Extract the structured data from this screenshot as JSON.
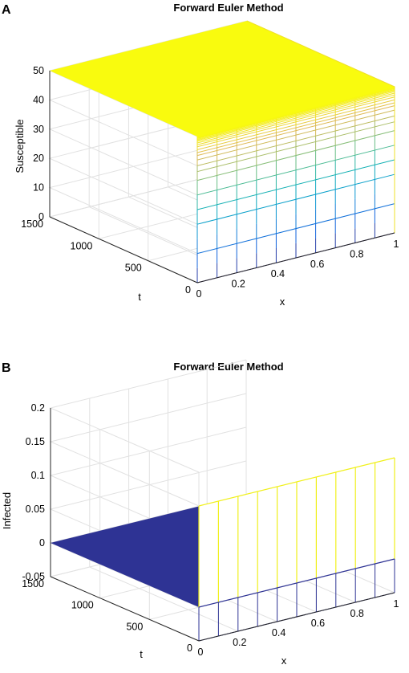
{
  "chart_data": [
    {
      "type": "surface",
      "panel_label": "A",
      "title": "Forward Euler Method",
      "xlabel": "x",
      "ylabel": "t",
      "zlabel": "Susceptible",
      "xlim": [
        0,
        1
      ],
      "ylim": [
        0,
        1500
      ],
      "zlim": [
        0,
        50
      ],
      "x_ticks": [
        0,
        0.2,
        0.4,
        0.6,
        0.8,
        1
      ],
      "y_ticks": [
        0,
        500,
        1000,
        1500
      ],
      "z_ticks": [
        0,
        10,
        20,
        30,
        40,
        50
      ],
      "x_tick_labels": [
        "0",
        "0.2",
        "0.4",
        "0.6",
        "0.8",
        "1"
      ],
      "y_tick_labels": [
        "0",
        "500",
        "1000",
        "1500"
      ],
      "z_tick_labels": [
        "0",
        "10",
        "20",
        "30",
        "40",
        "50"
      ],
      "x_front_lines": [
        0,
        0.1,
        0.2,
        0.3,
        0.4,
        0.5,
        0.6,
        0.7,
        0.8,
        0.9,
        1
      ],
      "front_edge_levels": [
        0,
        10,
        20,
        25,
        30,
        35,
        38,
        40,
        42,
        43.5,
        44.5,
        45.5,
        46.5,
        47.2,
        47.8,
        48.3,
        48.7,
        49,
        49.3,
        49.5,
        49.7,
        49.85,
        50
      ],
      "top_plateau": 50,
      "grid": true,
      "colormap": "parula"
    },
    {
      "type": "surface",
      "panel_label": "B",
      "title": "Forward Euler Method",
      "xlabel": "x",
      "ylabel": "t",
      "zlabel": "Infected",
      "xlim": [
        0,
        1
      ],
      "ylim": [
        0,
        1500
      ],
      "zlim": [
        -0.05,
        0.2
      ],
      "x_ticks": [
        0,
        0.2,
        0.4,
        0.6,
        0.8,
        1
      ],
      "y_ticks": [
        0,
        500,
        1000,
        1500
      ],
      "z_ticks": [
        -0.05,
        0,
        0.05,
        0.1,
        0.15,
        0.2
      ],
      "x_tick_labels": [
        "0",
        "0.2",
        "0.4",
        "0.6",
        "0.8",
        "1"
      ],
      "y_tick_labels": [
        "0",
        "500",
        "1000",
        "1500"
      ],
      "z_tick_labels": [
        "-0.05",
        "0",
        "0.05",
        "0.1",
        "0.15",
        "0.2"
      ],
      "x_front_lines": [
        0,
        0.1,
        0.2,
        0.3,
        0.4,
        0.5,
        0.6,
        0.7,
        0.8,
        0.9,
        1
      ],
      "initial_peak": 0.15,
      "plateau": 0,
      "grid": true,
      "colormap": "parula"
    }
  ]
}
